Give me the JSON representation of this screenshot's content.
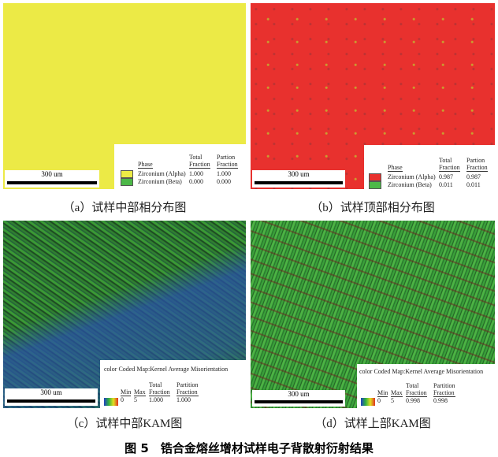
{
  "panels": {
    "a": {
      "caption": "（a）试样中部相分布图",
      "scale": "300 um",
      "phase_header": "Phase",
      "total_header": [
        "Total",
        "Fraction"
      ],
      "partion_header": [
        "Partion",
        "Fraction"
      ],
      "rows": [
        {
          "name": "Zirconium (Alpha)",
          "total": "1.000",
          "partion": "1.000",
          "color": "#ecea46"
        },
        {
          "name": "Zirconium (Beta)",
          "total": "0.000",
          "partion": "0.000",
          "color": "#4cb848"
        }
      ]
    },
    "b": {
      "caption": "（b）试样顶部相分布图",
      "scale": "300 um",
      "phase_header": "Phase",
      "total_header": [
        "Total",
        "Fraction"
      ],
      "partion_header": [
        "Partion",
        "Fraction"
      ],
      "rows": [
        {
          "name": "Zirconium (Alpha)",
          "total": "0.987",
          "partion": "0.987",
          "color": "#e8312e"
        },
        {
          "name": "Zirconium (Beta)",
          "total": "0.011",
          "partion": "0.011",
          "color": "#4cb848"
        }
      ]
    },
    "c": {
      "caption": "（c）试样中部KAM图",
      "scale": "300 um",
      "title": "color Coded Map:Kernel Average Misorientation",
      "min_label": "Min",
      "max_label": "Max",
      "min": "0",
      "max": "5",
      "total_header": [
        "Total",
        "Fraction"
      ],
      "partition_header": [
        "Partition",
        "Fraction"
      ],
      "total": "1.000",
      "partition": "1.000"
    },
    "d": {
      "caption": "（d）试样上部KAM图",
      "scale": "300 um",
      "title": "color Coded Map:Kernel Average Misorientation",
      "min_label": "Min",
      "max_label": "Max",
      "min": "0",
      "max": "5",
      "total_header": [
        "Total",
        "Fraction"
      ],
      "partition_header": [
        "Partition",
        "Fraction"
      ],
      "total": "0.998",
      "partition": "0.998"
    }
  },
  "figure_caption": "图 5　锆合金熔丝增材试样电子背散射衍射结果"
}
